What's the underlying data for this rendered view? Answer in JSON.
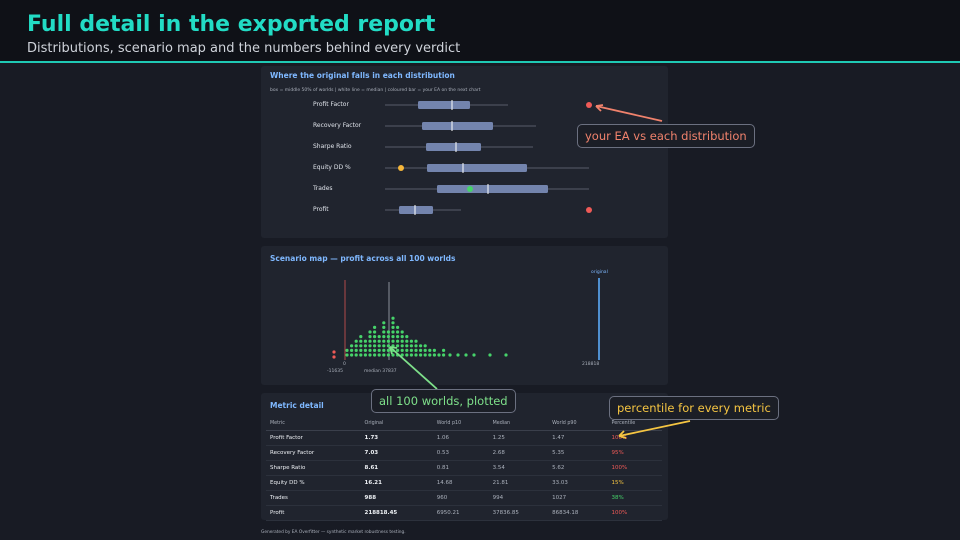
{
  "header": {
    "title": "Full detail in the exported report",
    "subtitle": "Distributions, scenario map and the numbers behind every verdict"
  },
  "distributions": {
    "title": "Where the original falls in each distribution",
    "legend": "box = middle 50% of worlds  |  white line = median  |  coloured bar = your EA on the next chart",
    "rows": [
      "Profit Factor",
      "Recovery Factor",
      "Sharpe Ratio",
      "Equity DD %",
      "Trades",
      "Profit"
    ]
  },
  "scenario_map": {
    "title": "Scenario map — profit across all 100 worlds",
    "original_label": "original",
    "min_label": "-11635",
    "zero_label": "0",
    "median_label": "median 37837",
    "max_label": "218818"
  },
  "metric_detail": {
    "title": "Metric detail",
    "columns": [
      "Metric",
      "Original",
      "World p10",
      "Median",
      "World p90",
      "Percentile"
    ],
    "rows": [
      [
        "Profit Factor",
        "1.73",
        "1.06",
        "1.25",
        "1.47",
        "100%"
      ],
      [
        "Recovery Factor",
        "7.03",
        "0.53",
        "2.68",
        "5.35",
        "95%"
      ],
      [
        "Sharpe Ratio",
        "8.61",
        "0.81",
        "3.54",
        "5.62",
        "100%"
      ],
      [
        "Equity DD %",
        "16.21",
        "14.68",
        "21.81",
        "33.03",
        "15%"
      ],
      [
        "Trades",
        "988",
        "960",
        "994",
        "1027",
        "38%"
      ],
      [
        "Profit",
        "218818.45",
        "6950.21",
        "37836.85",
        "86834.18",
        "100%"
      ]
    ]
  },
  "callouts": [
    "your EA vs each distribution",
    "all 100 worlds, plotted",
    "percentile for every metric"
  ],
  "footer": "Generated by EA Overfitter — synthetic market robustness testing."
}
